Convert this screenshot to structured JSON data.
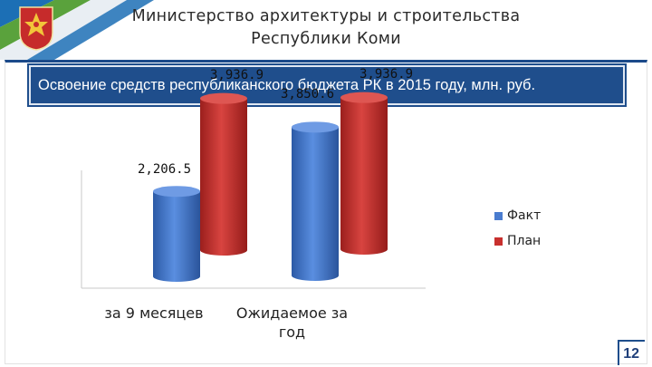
{
  "header": {
    "title_line1": "Министерство архитектуры и строительства",
    "title_line2": "Республики Коми"
  },
  "banner": {
    "text": "Освоение средств республиканского бюджета РК в 2015 году, млн. руб."
  },
  "colors": {
    "fact": "#4a7ccf",
    "plan": "#c8302e",
    "brand": "#1f4e8c"
  },
  "chart_data": {
    "type": "bar",
    "categories": [
      "за 9 месяцев",
      "Ожидаемое за год"
    ],
    "series": [
      {
        "name": "Факт",
        "values": [
          2206.5,
          3850.6
        ],
        "labels": [
          "2,206.5",
          "3,850.6"
        ]
      },
      {
        "name": "План",
        "values": [
          3936.9,
          3936.9
        ],
        "labels": [
          "3,936.9",
          "3,936.9"
        ]
      }
    ],
    "legend": "right",
    "style": "3d-cylinder"
  },
  "page": {
    "number": "12"
  }
}
